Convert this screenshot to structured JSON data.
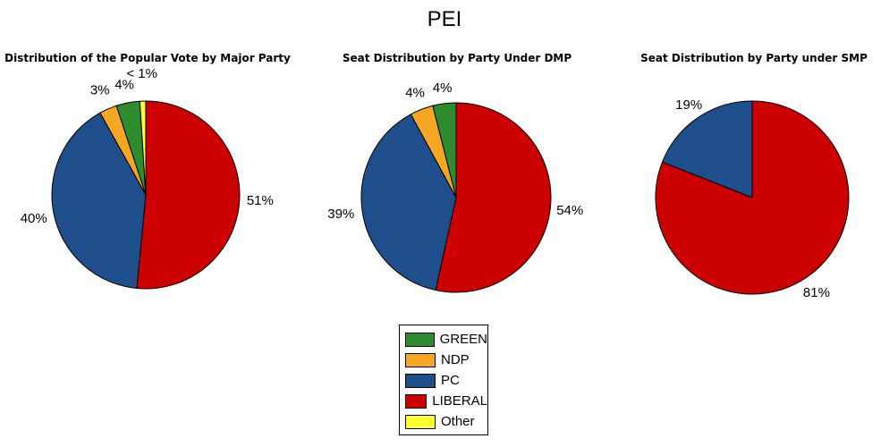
{
  "title": "PEI",
  "legend": [
    {
      "label": "GREEN",
      "color": "#2e8b2e"
    },
    {
      "label": "NDP",
      "color": "#f5a623"
    },
    {
      "label": "PC",
      "color": "#1f4e8c"
    },
    {
      "label": "LIBERAL",
      "color": "#cc0000"
    },
    {
      "label": "Other",
      "color": "#ffff33"
    }
  ],
  "chart_data": [
    {
      "type": "pie",
      "title": "Distribution of the Popular Vote by Major Party",
      "slices": [
        {
          "name": "LIBERAL",
          "value": 51,
          "label": "51%"
        },
        {
          "name": "PC",
          "value": 40,
          "label": "40%"
        },
        {
          "name": "NDP",
          "value": 3,
          "label": "3%"
        },
        {
          "name": "GREEN",
          "value": 4,
          "label": "4%"
        },
        {
          "name": "Other",
          "value": 1,
          "label": "< 1%"
        }
      ]
    },
    {
      "type": "pie",
      "title": "Seat Distribution by Party Under DMP",
      "slices": [
        {
          "name": "LIBERAL",
          "value": 54,
          "label": "54%"
        },
        {
          "name": "PC",
          "value": 39,
          "label": "39%"
        },
        {
          "name": "NDP",
          "value": 4,
          "label": "4%"
        },
        {
          "name": "GREEN",
          "value": 4,
          "label": "4%"
        }
      ]
    },
    {
      "type": "pie",
      "title": "Seat Distribution by Party under SMP",
      "slices": [
        {
          "name": "LIBERAL",
          "value": 81,
          "label": "81%"
        },
        {
          "name": "PC",
          "value": 19,
          "label": "19%"
        }
      ]
    }
  ]
}
